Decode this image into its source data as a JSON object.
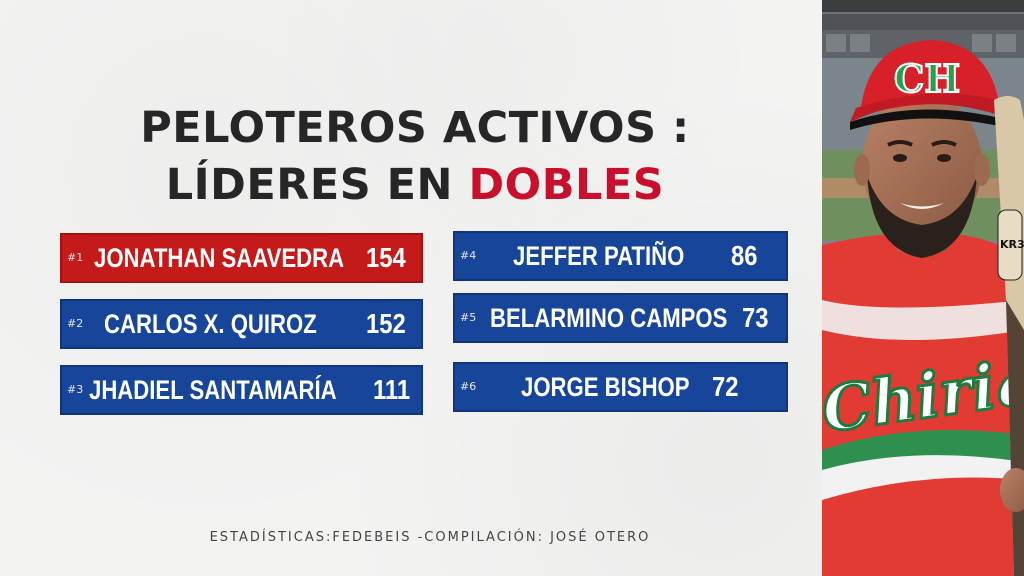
{
  "title": {
    "line1": "PELOTEROS ACTIVOS :",
    "line2_prefix": "LÍDERES EN ",
    "line2_accent": "DOBLES"
  },
  "leaders": [
    {
      "rank": "#1",
      "name": "JONATHAN SAAVEDRA",
      "value": "154"
    },
    {
      "rank": "#2",
      "name": "CARLOS X. QUIROZ",
      "value": "152"
    },
    {
      "rank": "#3",
      "name": "JHADIEL SANTAMARÍA",
      "value": "111"
    },
    {
      "rank": "#4",
      "name": "JEFFER PATIÑO",
      "value": "86"
    },
    {
      "rank": "#5",
      "name": "BELARMINO CAMPOS",
      "value": "73"
    },
    {
      "rank": "#6",
      "name": "JORGE BISHOP",
      "value": "72"
    }
  ],
  "footer": "ESTADÍSTICAS:FEDEBEIS -COMPILACIÓN: JOSÉ OTERO",
  "photo": {
    "cap_letters": "CH",
    "jersey_text": "Chiriquí",
    "bat_text": "KR3"
  },
  "colors": {
    "leader_red": "#c41a1a",
    "row_blue": "#16459a",
    "title_dark": "#262626",
    "accent_red": "#c8102e"
  }
}
